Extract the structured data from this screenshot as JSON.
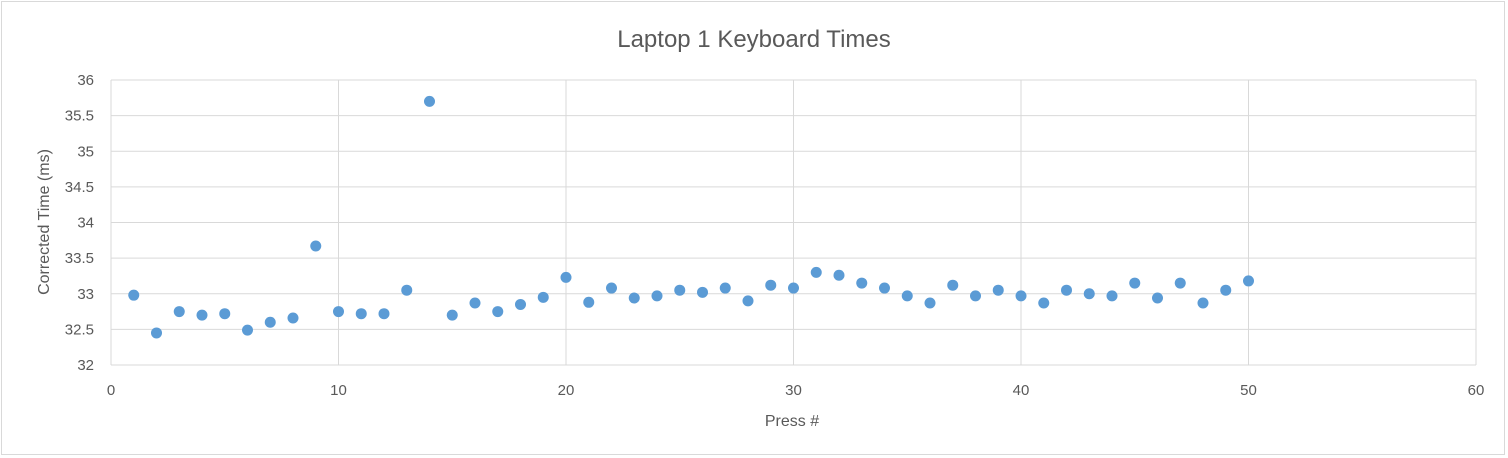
{
  "chart_data": {
    "type": "scatter",
    "title": "Laptop 1 Keyboard Times",
    "xlabel": "Press #",
    "ylabel": "Corrected Time (ms)",
    "xlim": [
      0,
      60
    ],
    "ylim": [
      32,
      36
    ],
    "xticks": [
      0,
      10,
      20,
      30,
      40,
      50,
      60
    ],
    "yticks": [
      32,
      32.5,
      33,
      33.5,
      34,
      34.5,
      35,
      35.5,
      36
    ],
    "grid": true,
    "marker_color": "#5b9bd5",
    "series": [
      {
        "x": [
          1,
          2,
          3,
          4,
          5,
          6,
          7,
          8,
          9,
          10,
          11,
          12,
          13,
          14,
          15,
          16,
          17,
          18,
          19,
          20,
          21,
          22,
          23,
          24,
          25,
          26,
          27,
          28,
          29,
          30,
          31,
          32,
          33,
          34,
          35,
          36,
          37,
          38,
          39,
          40,
          41,
          42,
          43,
          44,
          45,
          46,
          47,
          48,
          49,
          50
        ],
        "y": [
          32.98,
          32.45,
          32.75,
          32.7,
          32.72,
          32.49,
          32.6,
          32.66,
          33.67,
          32.75,
          32.72,
          32.72,
          33.05,
          35.7,
          32.7,
          32.87,
          32.75,
          32.85,
          32.95,
          33.23,
          32.88,
          33.08,
          32.94,
          32.97,
          33.05,
          33.02,
          33.08,
          32.9,
          33.12,
          33.08,
          33.3,
          33.26,
          33.15,
          33.08,
          32.97,
          32.87,
          33.12,
          32.97,
          33.05,
          32.97,
          32.87,
          33.05,
          33.0,
          32.97,
          33.15,
          32.94,
          33.15,
          32.87,
          33.05,
          33.18
        ]
      }
    ]
  }
}
